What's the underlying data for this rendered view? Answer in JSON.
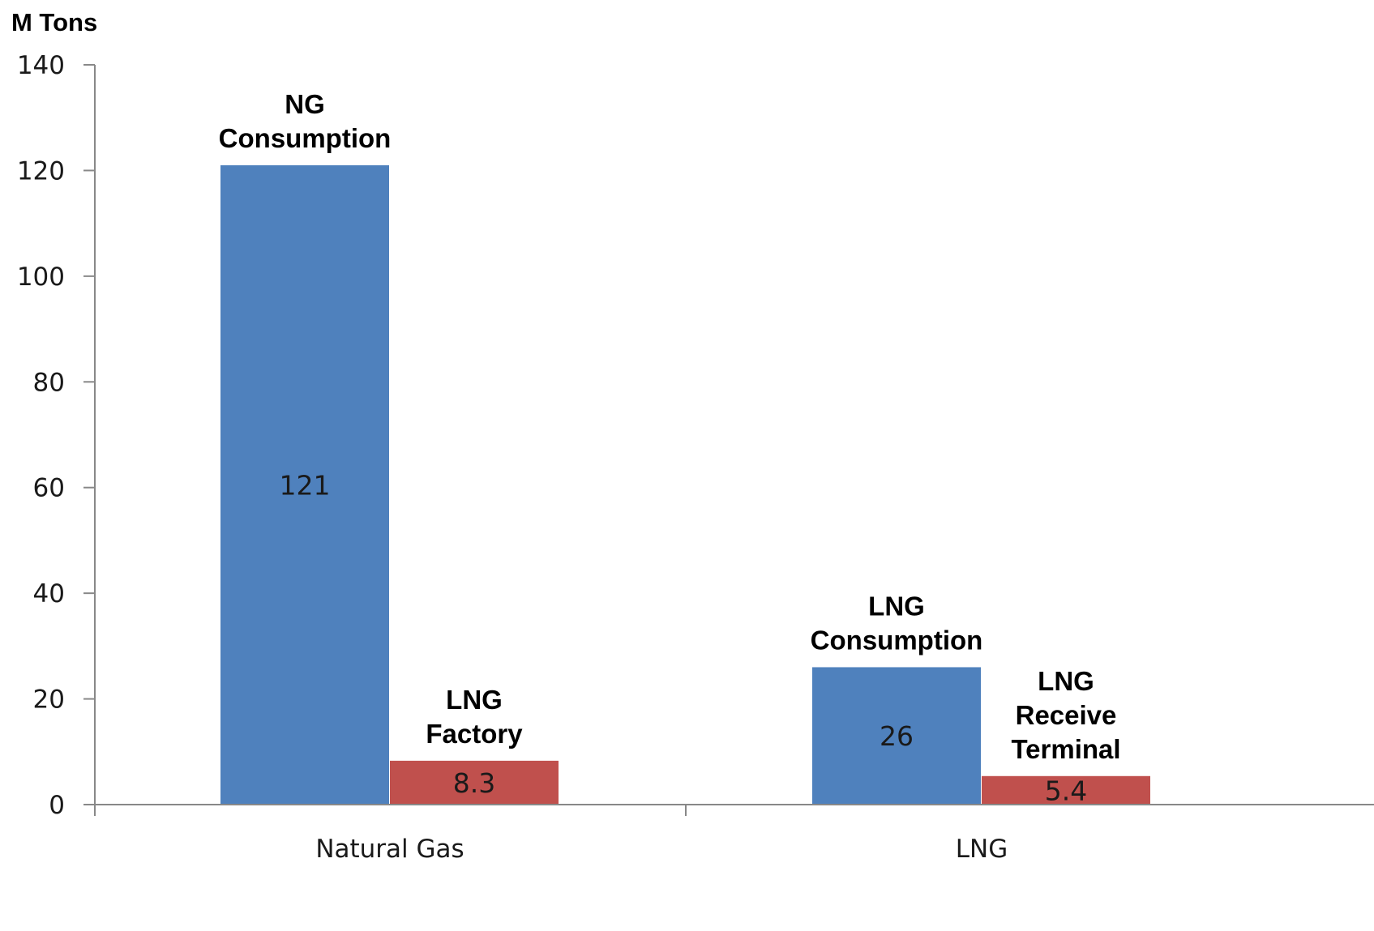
{
  "chart_data": {
    "type": "bar",
    "unit_label": "M Tons",
    "categories": [
      "Natural Gas",
      "LNG"
    ],
    "ylim": [
      0,
      140
    ],
    "yticks": [
      0,
      20,
      40,
      60,
      80,
      100,
      120,
      140
    ],
    "grid": false,
    "legend": "none",
    "bars": [
      {
        "category": "Natural Gas",
        "value": 121,
        "value_label": "121",
        "color": "#4f81bd",
        "annotation": [
          "NG",
          "Consumption"
        ]
      },
      {
        "category": "Natural Gas",
        "value": 8.3,
        "value_label": "8.3",
        "color": "#c0504d",
        "annotation": [
          "LNG",
          "Factory"
        ]
      },
      {
        "category": "LNG",
        "value": 26,
        "value_label": "26",
        "color": "#4f81bd",
        "annotation": [
          "LNG",
          "Consumption"
        ]
      },
      {
        "category": "LNG",
        "value": 5.4,
        "value_label": "5.4",
        "color": "#c0504d",
        "annotation": [
          "LNG",
          "Receive",
          "Terminal"
        ]
      }
    ]
  }
}
